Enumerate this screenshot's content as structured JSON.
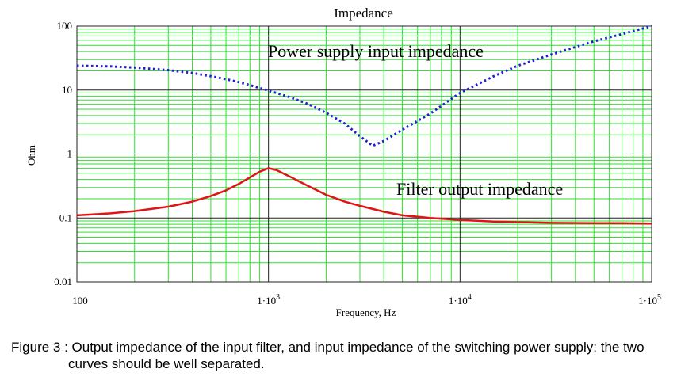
{
  "chart_data": {
    "type": "line",
    "title": "Impedance",
    "xlabel": "Frequency, Hz",
    "ylabel": "Ohm",
    "x_scale": "log",
    "y_scale": "log",
    "xlim": [
      100,
      100000
    ],
    "ylim": [
      0.01,
      100
    ],
    "x_ticks": [
      {
        "value": 100,
        "label": "100",
        "exp": ""
      },
      {
        "value": 1000,
        "label": "1·10",
        "exp": "3"
      },
      {
        "value": 10000,
        "label": "1·10",
        "exp": "4"
      },
      {
        "value": 100000,
        "label": "1·10",
        "exp": "5"
      }
    ],
    "y_ticks": [
      {
        "value": 0.01,
        "label": "0.01"
      },
      {
        "value": 0.1,
        "label": "0.1"
      },
      {
        "value": 1,
        "label": "1"
      },
      {
        "value": 10,
        "label": "10"
      },
      {
        "value": 100,
        "label": "100"
      }
    ],
    "grid": true,
    "annotations": [
      {
        "text": "Power supply input impedance"
      },
      {
        "text": "Filter output impedance"
      }
    ],
    "series": [
      {
        "style": "dotted",
        "color": "#1f1fd6",
        "x": [
          100,
          150,
          200,
          300,
          400,
          500,
          600,
          700,
          800,
          1000,
          1300,
          1600,
          2000,
          2500,
          3000,
          3500,
          4000,
          5000,
          7000,
          10000,
          15000,
          20000,
          30000,
          50000,
          70000,
          100000
        ],
        "y": [
          24,
          23.5,
          22.5,
          20.5,
          18.5,
          16.5,
          14.8,
          13.3,
          12,
          9.8,
          7.7,
          6.1,
          4.4,
          3,
          1.9,
          1.35,
          1.6,
          2.4,
          4.3,
          9,
          16.5,
          24,
          36,
          58,
          75,
          100
        ]
      },
      {
        "style": "solid",
        "color": "#e01414",
        "x": [
          100,
          150,
          200,
          300,
          400,
          500,
          600,
          700,
          800,
          900,
          1000,
          1100,
          1300,
          1600,
          2000,
          2500,
          3000,
          4000,
          5000,
          7000,
          10000,
          15000,
          20000,
          30000,
          50000,
          70000,
          100000
        ],
        "y": [
          0.11,
          0.118,
          0.128,
          0.15,
          0.18,
          0.22,
          0.27,
          0.34,
          0.43,
          0.53,
          0.6,
          0.56,
          0.44,
          0.32,
          0.23,
          0.18,
          0.155,
          0.125,
          0.11,
          0.1,
          0.093,
          0.088,
          0.086,
          0.084,
          0.083,
          0.083,
          0.082
        ]
      }
    ]
  },
  "caption": {
    "text": "Figure 3 : Output impedance of the input filter, and input impedance of the switching power supply: the two curves should be well separated."
  }
}
